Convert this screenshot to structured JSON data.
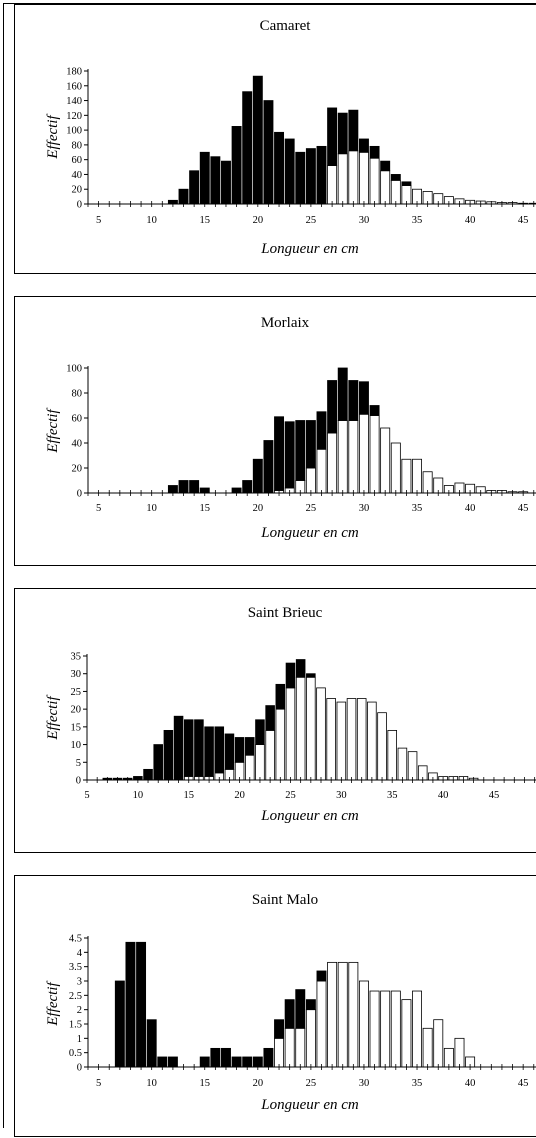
{
  "chart_data": [
    {
      "type": "bar",
      "stacked": true,
      "title": "Camaret",
      "xlabel": "Longueur en cm",
      "ylabel": "Effectif",
      "xlim": [
        4,
        48
      ],
      "ylim": [
        0,
        180
      ],
      "yticks": [
        0,
        20,
        40,
        60,
        80,
        100,
        120,
        140,
        160,
        180
      ],
      "xticks": [
        5,
        10,
        15,
        20,
        25,
        30,
        35,
        40,
        45
      ],
      "x": [
        5,
        6,
        7,
        8,
        9,
        10,
        11,
        12,
        13,
        14,
        15,
        16,
        17,
        18,
        19,
        20,
        21,
        22,
        23,
        24,
        25,
        26,
        27,
        28,
        29,
        30,
        31,
        32,
        33,
        34,
        35,
        36,
        37,
        38,
        39,
        40,
        41,
        42,
        43,
        44,
        45,
        46,
        47
      ],
      "series": [
        {
          "values": [
            0,
            0,
            0,
            0,
            0,
            0,
            0,
            0,
            0,
            0,
            0,
            0,
            0,
            0,
            0,
            0,
            0,
            0,
            0,
            0,
            0,
            0,
            52,
            68,
            72,
            70,
            62,
            45,
            32,
            25,
            20,
            17,
            14,
            10,
            7,
            5,
            4,
            3,
            2,
            2,
            1,
            1,
            1
          ]
        },
        {
          "values": [
            0,
            0,
            0,
            0,
            0,
            0,
            0,
            5,
            20,
            45,
            70,
            64,
            58,
            105,
            152,
            173,
            140,
            97,
            88,
            70,
            75,
            78,
            78,
            55,
            55,
            18,
            16,
            13,
            8,
            5,
            0,
            0,
            0,
            0,
            0,
            0,
            0,
            0,
            0,
            0,
            0,
            0,
            0
          ]
        }
      ]
    },
    {
      "type": "bar",
      "stacked": true,
      "title": "Morlaix",
      "xlabel": "Longueur en cm",
      "ylabel": "Effectif",
      "xlim": [
        4,
        48
      ],
      "ylim": [
        0,
        100
      ],
      "yticks": [
        0,
        20,
        40,
        60,
        80,
        100
      ],
      "xticks": [
        5,
        10,
        15,
        20,
        25,
        30,
        35,
        40,
        45
      ],
      "x": [
        5,
        6,
        7,
        8,
        9,
        10,
        11,
        12,
        13,
        14,
        15,
        16,
        17,
        18,
        19,
        20,
        21,
        22,
        23,
        24,
        25,
        26,
        27,
        28,
        29,
        30,
        31,
        32,
        33,
        34,
        35,
        36,
        37,
        38,
        39,
        40,
        41,
        42,
        43,
        44,
        45,
        46,
        47
      ],
      "series": [
        {
          "values": [
            0,
            0,
            0,
            0,
            0,
            0,
            0,
            0,
            0,
            0,
            0,
            0,
            0,
            0,
            0,
            0,
            0,
            2,
            4,
            10,
            20,
            35,
            48,
            58,
            58,
            63,
            62,
            52,
            40,
            27,
            27,
            17,
            12,
            6,
            8,
            7,
            5,
            2,
            2,
            1,
            1,
            0,
            0
          ]
        },
        {
          "values": [
            0,
            0,
            0,
            0,
            0,
            0,
            0,
            6,
            10,
            10,
            4,
            0,
            0,
            4,
            10,
            27,
            42,
            59,
            53,
            48,
            38,
            30,
            42,
            42,
            32,
            26,
            8,
            0,
            0,
            0,
            0,
            0,
            0,
            0,
            0,
            0,
            0,
            0,
            0,
            0,
            0,
            0,
            0
          ]
        }
      ]
    },
    {
      "type": "bar",
      "stacked": true,
      "title": "Saint Brieuc",
      "xlabel": "Longueur en cm",
      "ylabel": "Effectif",
      "xlim": [
        5,
        51
      ],
      "ylim": [
        0,
        35
      ],
      "yticks": [
        0,
        5,
        10,
        15,
        20,
        25,
        30,
        35
      ],
      "xticks": [
        5,
        10,
        15,
        20,
        25,
        30,
        35,
        40,
        45,
        50
      ],
      "x": [
        6,
        7,
        8,
        9,
        10,
        11,
        12,
        13,
        14,
        15,
        16,
        17,
        18,
        19,
        20,
        21,
        22,
        23,
        24,
        25,
        26,
        27,
        28,
        29,
        30,
        31,
        32,
        33,
        34,
        35,
        36,
        37,
        38,
        39,
        40,
        41,
        42,
        43,
        44,
        45,
        46,
        47,
        48,
        49,
        50
      ],
      "series": [
        {
          "values": [
            0,
            0,
            0,
            0,
            0,
            0,
            0,
            0,
            0,
            1,
            1,
            1,
            2,
            3,
            5,
            7,
            10,
            14,
            20,
            26,
            29,
            29,
            26,
            23,
            22,
            23,
            23,
            22,
            19,
            14,
            9,
            8,
            4,
            2,
            1,
            1,
            1,
            0.5,
            0,
            0,
            0,
            0,
            0,
            0,
            0
          ]
        },
        {
          "values": [
            0,
            0.5,
            0.5,
            0.5,
            1,
            3,
            10,
            14,
            18,
            16,
            16,
            14,
            13,
            10,
            7,
            5,
            7,
            7,
            7,
            7,
            5,
            1,
            0,
            0,
            0,
            0,
            0,
            0,
            0,
            0,
            0,
            0,
            0,
            0,
            0,
            0,
            0,
            0,
            0,
            0,
            0,
            0,
            0,
            0,
            0
          ]
        }
      ]
    },
    {
      "type": "bar",
      "stacked": true,
      "title": "Saint Malo",
      "xlabel": "Longueur en cm",
      "ylabel": "Effectif",
      "xlim": [
        4,
        48
      ],
      "ylim": [
        0,
        4.5
      ],
      "yticks": [
        0,
        0.5,
        1,
        1.5,
        2,
        2.5,
        3,
        3.5,
        4,
        4.5
      ],
      "xticks": [
        5,
        10,
        15,
        20,
        25,
        30,
        35,
        40,
        45
      ],
      "x": [
        7,
        8,
        9,
        10,
        11,
        12,
        13,
        14,
        15,
        16,
        17,
        18,
        19,
        20,
        21,
        22,
        23,
        24,
        25,
        26,
        27,
        28,
        29,
        30,
        31,
        32,
        33,
        34,
        35,
        36,
        37,
        38,
        39,
        40
      ],
      "series": [
        {
          "values": [
            0,
            0,
            0,
            0,
            0,
            0,
            0,
            0,
            0,
            0,
            0,
            0,
            0,
            0,
            0,
            1,
            1.35,
            1.35,
            2,
            3,
            3.65,
            3.65,
            3.65,
            3,
            2.65,
            2.65,
            2.65,
            2.35,
            2.65,
            1.35,
            1.65,
            0.65,
            1,
            0.35
          ]
        },
        {
          "values": [
            3,
            4.35,
            4.35,
            1.65,
            0.35,
            0.35,
            0,
            0,
            0.35,
            0.65,
            0.65,
            0.35,
            0.35,
            0.35,
            0.65,
            0.65,
            1,
            1.35,
            0.35,
            0.35,
            0,
            0,
            0,
            0,
            0,
            0,
            0,
            0,
            0,
            0,
            0,
            0,
            0,
            0
          ]
        }
      ]
    }
  ]
}
